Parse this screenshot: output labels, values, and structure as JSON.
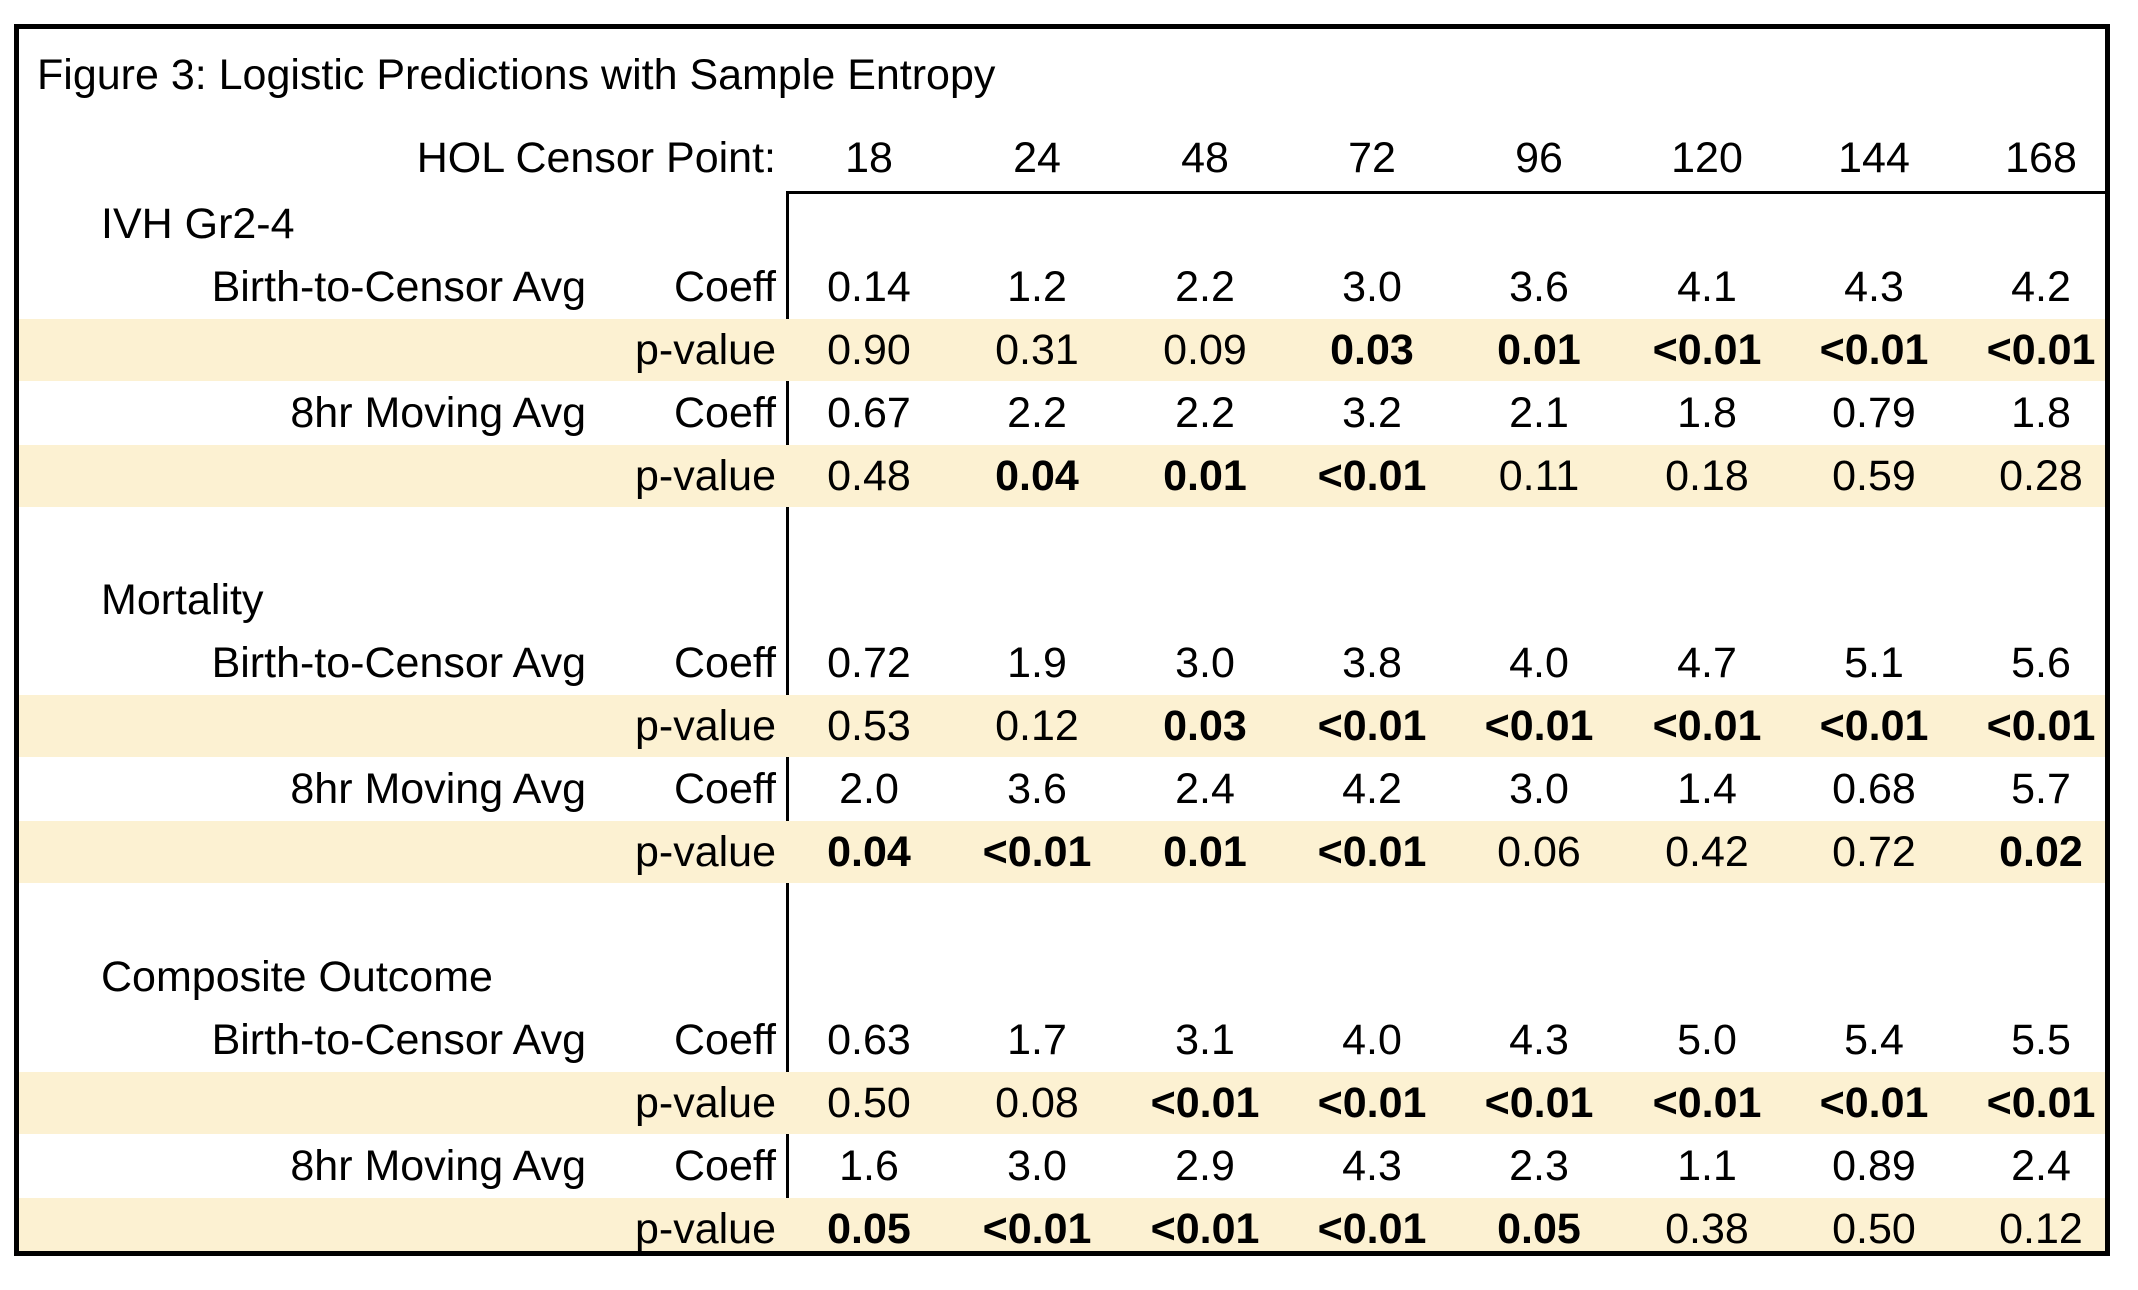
{
  "figure_title": "Figure 3: Logistic Predictions with Sample Entropy",
  "header": {
    "label": "HOL Censor Point:",
    "censor_points": [
      "18",
      "24",
      "48",
      "72",
      "96",
      "120",
      "144",
      "168"
    ]
  },
  "groups": [
    {
      "title": "IVH Gr2-4",
      "measures": [
        {
          "name": "Birth-to-Censor Avg",
          "coeff_label": "Coeff",
          "pvalue_label": "p-value",
          "coeff": [
            "0.14",
            "1.2",
            "2.2",
            "3.0",
            "3.6",
            "4.1",
            "4.3",
            "4.2"
          ],
          "pvalue": [
            "0.90",
            "0.31",
            "0.09",
            "0.03",
            "0.01",
            "<0.01",
            "<0.01",
            "<0.01"
          ],
          "pvalue_bold": [
            false,
            false,
            false,
            true,
            true,
            true,
            true,
            true
          ]
        },
        {
          "name": "8hr Moving Avg",
          "coeff_label": "Coeff",
          "pvalue_label": "p-value",
          "coeff": [
            "0.67",
            "2.2",
            "2.2",
            "3.2",
            "2.1",
            "1.8",
            "0.79",
            "1.8"
          ],
          "pvalue": [
            "0.48",
            "0.04",
            "0.01",
            "<0.01",
            "0.11",
            "0.18",
            "0.59",
            "0.28"
          ],
          "pvalue_bold": [
            false,
            true,
            true,
            true,
            false,
            false,
            false,
            false
          ]
        }
      ]
    },
    {
      "title": "Mortality",
      "measures": [
        {
          "name": "Birth-to-Censor Avg",
          "coeff_label": "Coeff",
          "pvalue_label": "p-value",
          "coeff": [
            "0.72",
            "1.9",
            "3.0",
            "3.8",
            "4.0",
            "4.7",
            "5.1",
            "5.6"
          ],
          "pvalue": [
            "0.53",
            "0.12",
            "0.03",
            "<0.01",
            "<0.01",
            "<0.01",
            "<0.01",
            "<0.01"
          ],
          "pvalue_bold": [
            false,
            false,
            true,
            true,
            true,
            true,
            true,
            true
          ]
        },
        {
          "name": "8hr Moving Avg",
          "coeff_label": "Coeff",
          "pvalue_label": "p-value",
          "coeff": [
            "2.0",
            "3.6",
            "2.4",
            "4.2",
            "3.0",
            "1.4",
            "0.68",
            "5.7"
          ],
          "pvalue": [
            "0.04",
            "<0.01",
            "0.01",
            "<0.01",
            "0.06",
            "0.42",
            "0.72",
            "0.02"
          ],
          "pvalue_bold": [
            true,
            true,
            true,
            true,
            false,
            false,
            false,
            true
          ]
        }
      ]
    },
    {
      "title": "Composite Outcome",
      "measures": [
        {
          "name": "Birth-to-Censor Avg",
          "coeff_label": "Coeff",
          "pvalue_label": "p-value",
          "coeff": [
            "0.63",
            "1.7",
            "3.1",
            "4.0",
            "4.3",
            "5.0",
            "5.4",
            "5.5"
          ],
          "pvalue": [
            "0.50",
            "0.08",
            "<0.01",
            "<0.01",
            "<0.01",
            "<0.01",
            "<0.01",
            "<0.01"
          ],
          "pvalue_bold": [
            false,
            false,
            true,
            true,
            true,
            true,
            true,
            true
          ]
        },
        {
          "name": "8hr Moving Avg",
          "coeff_label": "Coeff",
          "pvalue_label": "p-value",
          "coeff": [
            "1.6",
            "3.0",
            "2.9",
            "4.3",
            "2.3",
            "1.1",
            "0.89",
            "2.4"
          ],
          "pvalue": [
            "0.05",
            "<0.01",
            "<0.01",
            "<0.01",
            "0.05",
            "0.38",
            "0.50",
            "0.12"
          ],
          "pvalue_bold": [
            true,
            true,
            true,
            true,
            true,
            false,
            false,
            false
          ]
        }
      ]
    }
  ],
  "colors": {
    "shade": "#fcf1d2",
    "border": "#000000"
  }
}
